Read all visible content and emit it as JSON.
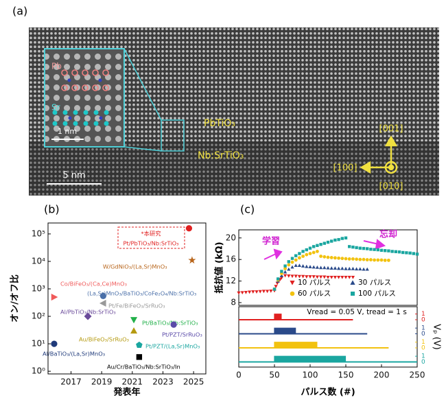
{
  "panel_a": {
    "label": "(a)",
    "layers": [
      "PbTiO₃",
      "Nb:SrTiO₃"
    ],
    "inset": {
      "atoms": [
        "Pb",
        "Sr"
      ],
      "scale": "1 nm"
    },
    "scale": "5 nm",
    "directions": [
      "[001]",
      "[100]",
      "[010]"
    ]
  },
  "chart_data": [
    {
      "type": "scatter",
      "panel_label": "(b)",
      "xlabel": "発表年",
      "ylabel": "オン/オフ比",
      "xlim": [
        2015.5,
        2025.8
      ],
      "xticks": [
        2017,
        2019,
        2021,
        2023,
        2025
      ],
      "ylim": [
        0.8,
        250000
      ],
      "yscale": "log",
      "yticks": [
        {
          "value": 1,
          "label": "10⁰"
        },
        {
          "value": 10,
          "label": "10¹"
        },
        {
          "value": 100,
          "label": "10²"
        },
        {
          "value": 1000,
          "label": "10³"
        },
        {
          "value": 10000,
          "label": "10⁴"
        },
        {
          "value": 100000,
          "label": "10⁵"
        }
      ],
      "series": [
        {
          "name": "Pt/PbTiO₃/Nb:SrTiO₃",
          "annotation": "*本研究",
          "color": "#e02020",
          "marker": "circle",
          "x": [
            2024.7
          ],
          "values": [
            160000
          ]
        },
        {
          "name": "W/GdNiO₃/(La,Sr)MnO₃",
          "color": "#b8651b",
          "marker": "star",
          "x": [
            2024.9
          ],
          "values": [
            11000
          ]
        },
        {
          "name": "Co/BiFeO₃/(Ca,Ce)MnO₃",
          "color": "#f05a5a",
          "marker": "triangle-right",
          "x": [
            2015.9
          ],
          "values": [
            500
          ]
        },
        {
          "name": "(La,Sr)MnO₃/BaTiO₃/CoFe₂O₄/Nb:SrTiO₃",
          "color": "#4a6fa8",
          "marker": "circle",
          "x": [
            2019.1
          ],
          "values": [
            550
          ]
        },
        {
          "name": "Pt/Fe/BiFeO₃/SrRuO₃",
          "color": "#999999",
          "marker": "triangle-left",
          "x": [
            2019.1
          ],
          "values": [
            300
          ]
        },
        {
          "name": "Al/PbTiO₃/Nb:SrTiO₃",
          "color": "#6a4a9a",
          "marker": "diamond",
          "x": [
            2018.1
          ],
          "values": [
            100
          ]
        },
        {
          "name": "Pt/BaTiO₃/Nb:SrTiO₃",
          "color": "#22b04a",
          "marker": "triangle-down",
          "x": [
            2021.1
          ],
          "values": [
            74
          ]
        },
        {
          "name": "Pt/PZT/SrRuO₃",
          "color": "#5a4aa8",
          "marker": "circle",
          "x": [
            2023.7
          ],
          "values": [
            50
          ]
        },
        {
          "name": "Au/BiFeO₃/SrRuO₃",
          "color": "#b59a10",
          "marker": "triangle-up",
          "x": [
            2021.1
          ],
          "values": [
            30
          ]
        },
        {
          "name": "Pt/PZT/(La,Sr)MnO₃",
          "color": "#1aa6a0",
          "marker": "pentagon",
          "x": [
            2021.45
          ],
          "values": [
            9
          ]
        },
        {
          "name": "Al/BaTiO₃/(La,Sr)MnO₃",
          "color": "#1f3a7a",
          "marker": "circle",
          "x": [
            2015.9
          ],
          "values": [
            10
          ]
        },
        {
          "name": "Au/Cr/BaTiO₃/Nb:SrTiO₃/In",
          "color": "#000000",
          "marker": "square",
          "x": [
            2021.45
          ],
          "values": [
            3.3
          ]
        }
      ]
    },
    {
      "type": "line",
      "panel_label": "(c)",
      "xlabel": "パルス数 (#)",
      "ylabel": "抵抗値 (kΩ)",
      "y2label": "Vₚ (V)",
      "note": "Vread = 0.05 V, tread = 1 s",
      "annotations": [
        "学習",
        "忘却"
      ],
      "xlim": [
        0,
        250
      ],
      "xticks": [
        0,
        50,
        100,
        150,
        200,
        250
      ],
      "ylim": [
        7.5,
        21.5
      ],
      "yticks": [
        8,
        12,
        16,
        20
      ],
      "vlim": [
        -0.4,
        1.4
      ],
      "vticks": [
        0,
        1
      ],
      "series": [
        {
          "name": "10 パルス",
          "color": "#e02020",
          "marker": "triangle-down",
          "pulse_range": [
            50,
            60
          ],
          "trace_range": [
            0,
            160
          ],
          "x": [
            0,
            5,
            10,
            15,
            20,
            25,
            30,
            35,
            40,
            45,
            50,
            52,
            54,
            56,
            58,
            60,
            65,
            70,
            75,
            80,
            85,
            90,
            95,
            100,
            105,
            110,
            115,
            120,
            125,
            130,
            135,
            140,
            145,
            150,
            155,
            160
          ],
          "values": [
            9.8,
            9.85,
            9.9,
            9.95,
            10.0,
            10.0,
            10.05,
            10.1,
            10.1,
            10.15,
            10.2,
            11.0,
            11.6,
            12.0,
            12.3,
            12.6,
            13.0,
            12.95,
            12.9,
            12.9,
            12.85,
            12.85,
            12.8,
            12.8,
            12.8,
            12.75,
            12.75,
            12.75,
            12.7,
            12.7,
            12.7,
            12.7,
            12.7,
            12.7,
            12.7,
            12.7
          ]
        },
        {
          "name": "30 パルス",
          "color": "#2a4a8a",
          "marker": "triangle-up",
          "pulse_range": [
            50,
            80
          ],
          "trace_range": [
            0,
            180
          ],
          "x": [
            50,
            55,
            60,
            65,
            70,
            75,
            80,
            85,
            90,
            95,
            100,
            105,
            110,
            115,
            120,
            125,
            130,
            135,
            140,
            145,
            150,
            155,
            160,
            165,
            170,
            175,
            180
          ],
          "values": [
            10.5,
            12.0,
            13.0,
            13.7,
            14.2,
            14.6,
            14.9,
            14.9,
            14.8,
            14.7,
            14.65,
            14.6,
            14.55,
            14.5,
            14.5,
            14.45,
            14.4,
            14.4,
            14.35,
            14.35,
            14.3,
            14.3,
            14.3,
            14.25,
            14.25,
            14.2,
            14.2
          ]
        },
        {
          "name": "60 パルス",
          "color": "#f2c20f",
          "marker": "circle",
          "pulse_range": [
            50,
            110
          ],
          "trace_range": [
            0,
            210
          ],
          "x": [
            50,
            55,
            60,
            65,
            70,
            75,
            80,
            85,
            90,
            95,
            100,
            105,
            110,
            115,
            120,
            125,
            130,
            135,
            140,
            145,
            150,
            155,
            160,
            165,
            170,
            175,
            180,
            185,
            190,
            195,
            200,
            205,
            210
          ],
          "values": [
            10.5,
            12.2,
            13.4,
            14.3,
            15.0,
            15.5,
            15.9,
            16.3,
            16.6,
            16.9,
            17.1,
            17.3,
            17.5,
            16.6,
            16.5,
            16.4,
            16.35,
            16.3,
            16.25,
            16.2,
            16.15,
            16.1,
            16.1,
            16.05,
            16.0,
            16.0,
            15.95,
            15.95,
            15.9,
            15.9,
            15.9,
            15.85,
            15.85
          ]
        },
        {
          "name": "100 パルス",
          "color": "#1aa6a0",
          "marker": "square",
          "pulse_range": [
            50,
            150
          ],
          "trace_range": [
            0,
            250
          ],
          "x": [
            50,
            55,
            60,
            65,
            70,
            75,
            80,
            85,
            90,
            95,
            100,
            105,
            110,
            115,
            120,
            125,
            130,
            135,
            140,
            145,
            150,
            155,
            160,
            165,
            170,
            175,
            180,
            185,
            190,
            195,
            200,
            205,
            210,
            215,
            220,
            225,
            230,
            235,
            240,
            245,
            250
          ],
          "values": [
            10.5,
            12.4,
            13.8,
            14.8,
            15.6,
            16.2,
            16.7,
            17.1,
            17.5,
            17.8,
            18.1,
            18.4,
            18.6,
            18.8,
            19.0,
            19.2,
            19.4,
            19.6,
            19.7,
            19.9,
            20.0,
            18.4,
            18.3,
            18.2,
            18.1,
            18.05,
            18.0,
            17.9,
            17.85,
            17.8,
            17.7,
            17.65,
            17.6,
            17.5,
            17.45,
            17.4,
            17.3,
            17.25,
            17.2,
            17.1,
            17.0
          ]
        }
      ]
    }
  ]
}
